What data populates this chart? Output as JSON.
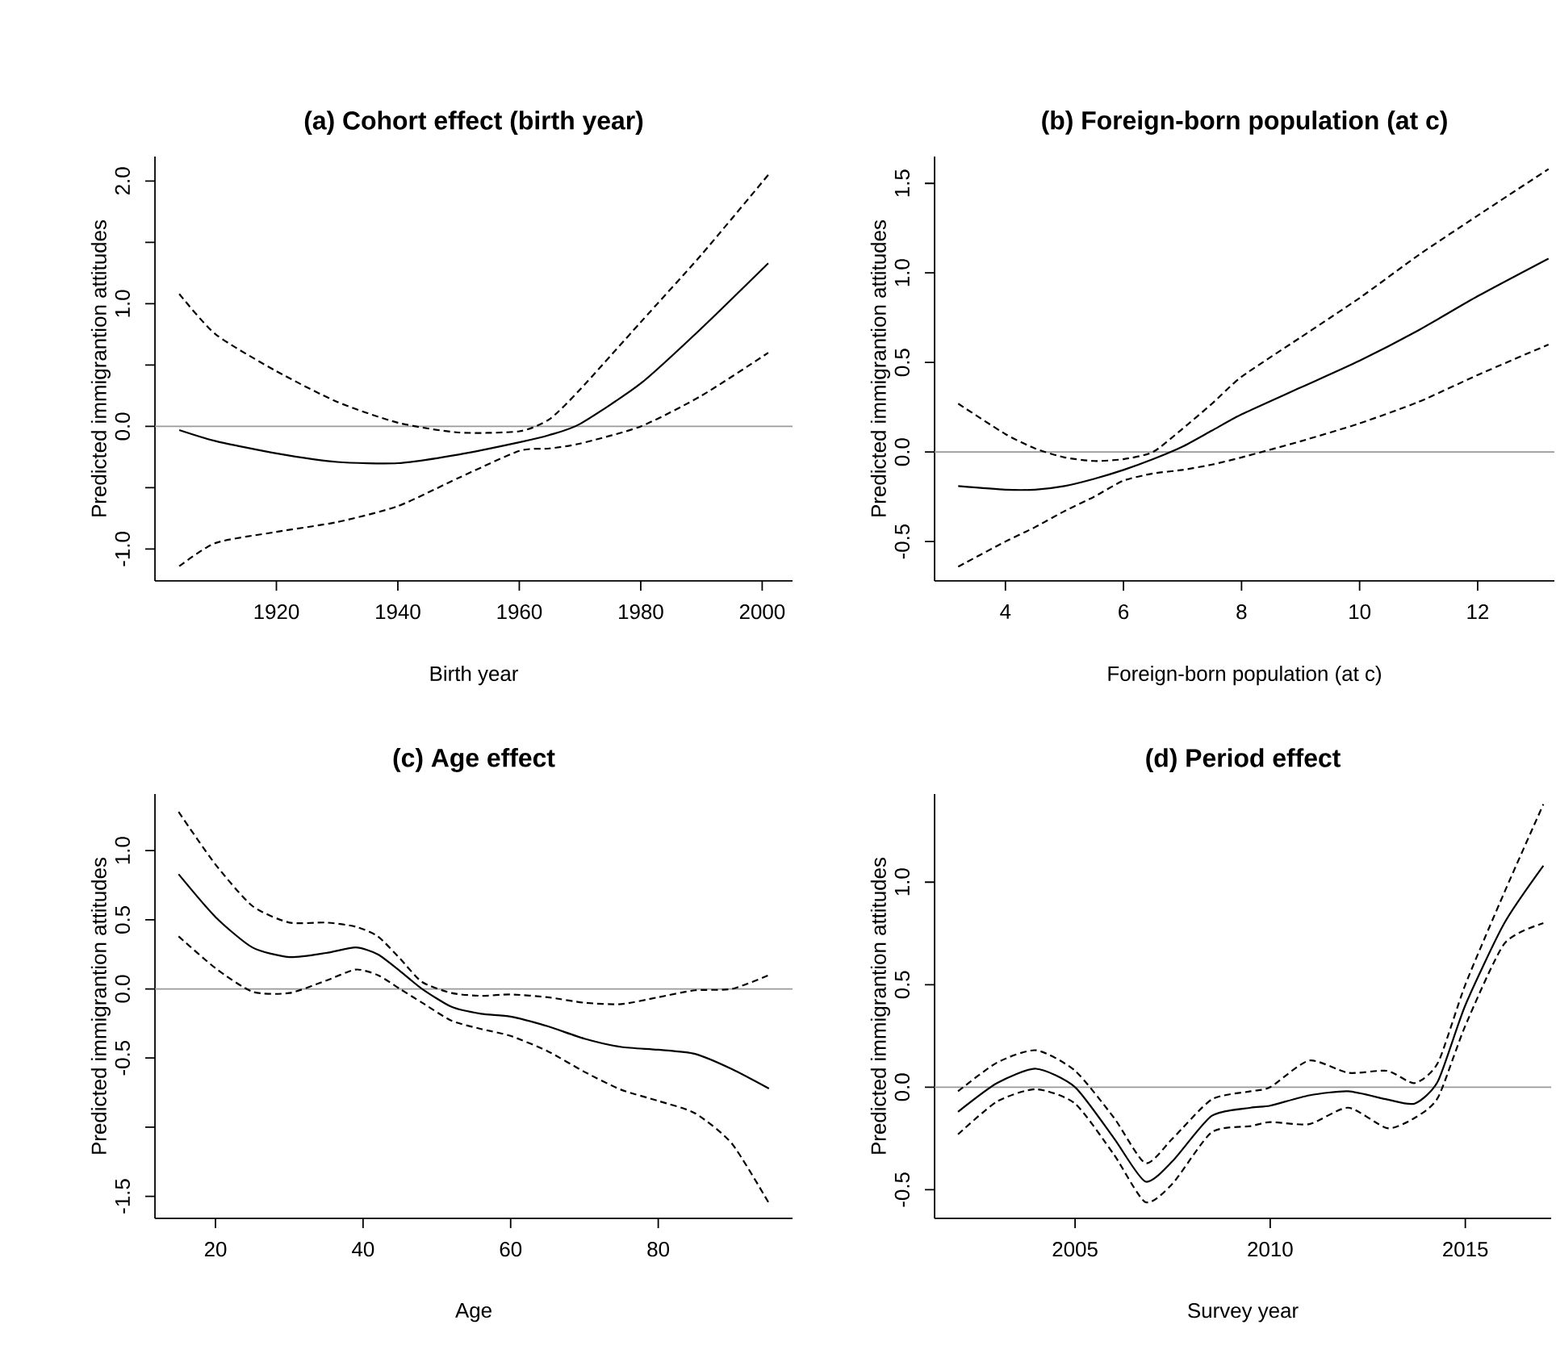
{
  "chart_data": [
    {
      "type": "line",
      "title": "(a) Cohort effect (birth year)",
      "xlabel": "Birth year",
      "ylabel": "Predicted immigrantion attitudes",
      "x": [
        1904,
        1910,
        1920,
        1930,
        1940,
        1950,
        1960,
        1965,
        1970,
        1980,
        1990,
        2001
      ],
      "series": [
        {
          "color": "#000000",
          "line_style": "solid",
          "values": [
            -0.03,
            -0.12,
            -0.22,
            -0.29,
            -0.3,
            -0.23,
            -0.13,
            -0.07,
            0.02,
            0.35,
            0.8,
            1.33
          ]
        },
        {
          "color": "#000000",
          "line_style": "dashed",
          "values": [
            1.08,
            0.75,
            0.45,
            0.2,
            0.03,
            -0.05,
            -0.04,
            0.06,
            0.3,
            0.85,
            1.4,
            2.05
          ]
        },
        {
          "color": "#000000",
          "line_style": "dashed",
          "values": [
            -1.14,
            -0.95,
            -0.86,
            -0.78,
            -0.65,
            -0.42,
            -0.2,
            -0.18,
            -0.14,
            0.0,
            0.25,
            0.6
          ]
        }
      ],
      "xlim": [
        1900,
        2005
      ],
      "ylim": [
        -1.26,
        2.2
      ],
      "xticks": [
        1920,
        1940,
        1960,
        1980,
        2000
      ],
      "yticks": [
        {
          "value": -1.0,
          "label": "-1.0"
        },
        {
          "value": -0.5,
          "label": null
        },
        {
          "value": 0.0,
          "label": "0.0"
        },
        {
          "value": 0.5,
          "label": null
        },
        {
          "value": 1.0,
          "label": "1.0"
        },
        {
          "value": 1.5,
          "label": null
        },
        {
          "value": 2.0,
          "label": "2.0"
        }
      ],
      "ref_lines": [
        {
          "axis": "y",
          "value": 0,
          "color": "#999999"
        }
      ]
    },
    {
      "type": "line",
      "title": "(b) Foreign-born population (at c)",
      "xlabel": "Foreign-born population (at c)",
      "ylabel": "Predicted immigrantion attitudes",
      "x": [
        3.2,
        4,
        4.5,
        5,
        5.5,
        6,
        6.5,
        7,
        7.5,
        8,
        9,
        10,
        11,
        12,
        13.2
      ],
      "series": [
        {
          "color": "#000000",
          "line_style": "solid",
          "values": [
            -0.19,
            -0.21,
            -0.21,
            -0.19,
            -0.15,
            -0.1,
            -0.04,
            0.03,
            0.12,
            0.21,
            0.36,
            0.51,
            0.68,
            0.87,
            1.08
          ]
        },
        {
          "color": "#000000",
          "line_style": "dashed",
          "values": [
            0.27,
            0.1,
            0.02,
            -0.03,
            -0.05,
            -0.04,
            0.0,
            0.13,
            0.27,
            0.42,
            0.64,
            0.86,
            1.1,
            1.32,
            1.58
          ]
        },
        {
          "color": "#000000",
          "line_style": "dashed",
          "values": [
            -0.64,
            -0.5,
            -0.42,
            -0.33,
            -0.25,
            -0.16,
            -0.12,
            -0.1,
            -0.07,
            -0.03,
            0.06,
            0.16,
            0.28,
            0.43,
            0.6
          ]
        }
      ],
      "xlim": [
        2.8,
        13.3
      ],
      "ylim": [
        -0.72,
        1.65
      ],
      "xticks": [
        4,
        6,
        8,
        10,
        12
      ],
      "yticks": [
        {
          "value": -0.5,
          "label": "-0.5"
        },
        {
          "value": 0.0,
          "label": "0.0"
        },
        {
          "value": 0.5,
          "label": "0.5"
        },
        {
          "value": 1.0,
          "label": "1.0"
        },
        {
          "value": 1.5,
          "label": "1.5"
        }
      ],
      "ref_lines": [
        {
          "axis": "y",
          "value": 0,
          "color": "#999999"
        }
      ]
    },
    {
      "type": "line",
      "title": "(c) Age effect",
      "xlabel": "Age",
      "ylabel": "Predicted immigrantion attitudes",
      "x": [
        15,
        20,
        25,
        30,
        35,
        39,
        42,
        45,
        48,
        52,
        56,
        60,
        65,
        70,
        75,
        80,
        85,
        90,
        95
      ],
      "series": [
        {
          "color": "#000000",
          "line_style": "solid",
          "values": [
            0.83,
            0.52,
            0.3,
            0.23,
            0.26,
            0.3,
            0.25,
            0.13,
            0.0,
            -0.13,
            -0.18,
            -0.2,
            -0.27,
            -0.36,
            -0.42,
            -0.44,
            -0.47,
            -0.58,
            -0.72
          ]
        },
        {
          "color": "#000000",
          "line_style": "dashed",
          "values": [
            1.28,
            0.9,
            0.6,
            0.48,
            0.48,
            0.45,
            0.38,
            0.22,
            0.05,
            -0.03,
            -0.05,
            -0.04,
            -0.06,
            -0.1,
            -0.11,
            -0.06,
            -0.01,
            0.0,
            0.1
          ]
        },
        {
          "color": "#000000",
          "line_style": "dashed",
          "values": [
            0.38,
            0.15,
            -0.02,
            -0.03,
            0.06,
            0.14,
            0.1,
            0.0,
            -0.1,
            -0.23,
            -0.29,
            -0.34,
            -0.45,
            -0.6,
            -0.73,
            -0.81,
            -0.9,
            -1.12,
            -1.55
          ]
        }
      ],
      "xlim": [
        11.8,
        98.2
      ],
      "ylim": [
        -1.66,
        1.41
      ],
      "xticks": [
        20,
        40,
        60,
        80
      ],
      "yticks": [
        {
          "value": -1.5,
          "label": "-1.5"
        },
        {
          "value": -1.0,
          "label": null
        },
        {
          "value": -0.5,
          "label": "-0.5"
        },
        {
          "value": 0.0,
          "label": "0.0"
        },
        {
          "value": 0.5,
          "label": "0.5"
        },
        {
          "value": 1.0,
          "label": "1.0"
        }
      ],
      "ref_lines": [
        {
          "axis": "y",
          "value": 0,
          "color": "#999999"
        }
      ]
    },
    {
      "type": "line",
      "title": "(d) Period effect",
      "xlabel": "Survey year",
      "ylabel": "Predicted immigrantion attitudes",
      "x": [
        2002,
        2003,
        2004,
        2005,
        2006,
        2006.8,
        2007.5,
        2008.5,
        2009.5,
        2010,
        2011,
        2012,
        2013,
        2013.7,
        2014.3,
        2015,
        2016,
        2017
      ],
      "series": [
        {
          "color": "#000000",
          "line_style": "solid",
          "values": [
            -0.12,
            0.02,
            0.09,
            0.0,
            -0.25,
            -0.46,
            -0.36,
            -0.14,
            -0.1,
            -0.09,
            -0.04,
            -0.02,
            -0.06,
            -0.08,
            0.03,
            0.4,
            0.8,
            1.08
          ]
        },
        {
          "color": "#000000",
          "line_style": "dashed",
          "values": [
            -0.02,
            0.12,
            0.18,
            0.08,
            -0.15,
            -0.37,
            -0.25,
            -0.06,
            -0.02,
            0.0,
            0.13,
            0.07,
            0.08,
            0.02,
            0.12,
            0.5,
            0.95,
            1.38
          ]
        },
        {
          "color": "#000000",
          "line_style": "dashed",
          "values": [
            -0.23,
            -0.07,
            -0.01,
            -0.08,
            -0.33,
            -0.56,
            -0.47,
            -0.22,
            -0.19,
            -0.17,
            -0.18,
            -0.1,
            -0.2,
            -0.15,
            -0.05,
            0.3,
            0.7,
            0.8
          ]
        }
      ],
      "xlim": [
        2001.4,
        2017.2
      ],
      "ylim": [
        -0.64,
        1.43
      ],
      "xticks": [
        2005,
        2010,
        2015
      ],
      "yticks": [
        {
          "value": -0.5,
          "label": "-0.5"
        },
        {
          "value": 0.0,
          "label": "0.0"
        },
        {
          "value": 0.5,
          "label": "0.5"
        },
        {
          "value": 1.0,
          "label": "1.0"
        }
      ],
      "ref_lines": [
        {
          "axis": "y",
          "value": 0,
          "color": "#999999"
        }
      ]
    }
  ]
}
